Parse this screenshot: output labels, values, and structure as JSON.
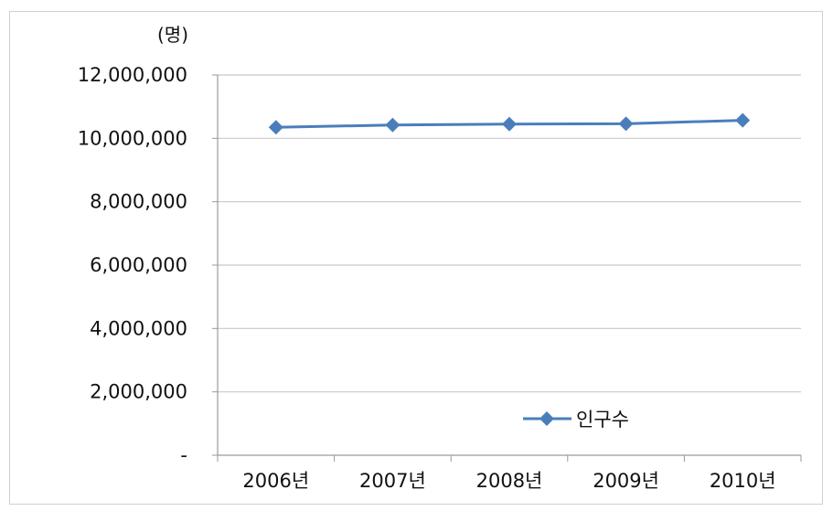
{
  "chart_data": {
    "type": "line",
    "unit_label": "(명)",
    "categories": [
      "2006년",
      "2007년",
      "2008년",
      "2009년",
      "2010년"
    ],
    "series": [
      {
        "name": "인구수",
        "color": "#4a7ebb",
        "marker": "diamond",
        "values": [
          10350000,
          10420000,
          10450000,
          10460000,
          10570000
        ]
      }
    ],
    "y_ticks": [
      {
        "value": 12000000,
        "label": "12,000,000"
      },
      {
        "value": 10000000,
        "label": "10,000,000"
      },
      {
        "value": 8000000,
        "label": "8,000,000"
      },
      {
        "value": 6000000,
        "label": "6,000,000"
      },
      {
        "value": 4000000,
        "label": "4,000,000"
      },
      {
        "value": 2000000,
        "label": "2,000,000"
      },
      {
        "value": 0,
        "label": "-"
      }
    ],
    "ylim": [
      0,
      12000000
    ],
    "grid": true,
    "legend_position": "bottom-right"
  }
}
